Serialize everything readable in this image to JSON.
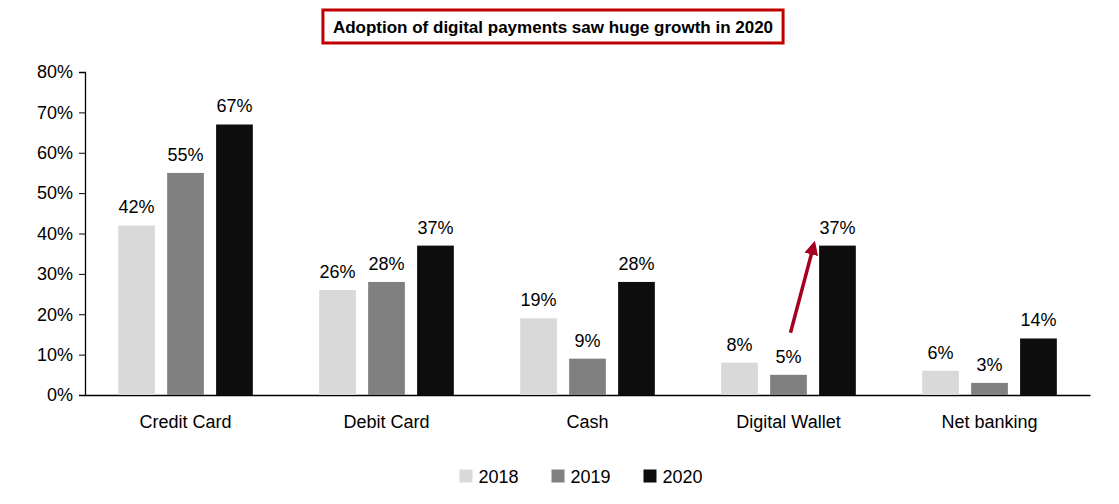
{
  "chart_data": {
    "type": "bar",
    "title": "Adoption of digital payments saw huge growth in 2020",
    "categories": [
      "Credit Card",
      "Debit Card",
      "Cash",
      "Digital Wallet",
      "Net banking"
    ],
    "series": [
      {
        "name": "2018",
        "color": "#d9d9d9",
        "values": [
          42,
          26,
          19,
          8,
          6
        ],
        "value_labels": [
          "42%",
          "26%",
          "19%",
          "8%",
          "6%"
        ]
      },
      {
        "name": "2019",
        "color": "#808080",
        "values": [
          55,
          28,
          9,
          5,
          3
        ],
        "value_labels": [
          "55%",
          "28%",
          "9%",
          "5%",
          "3%"
        ]
      },
      {
        "name": "2020",
        "color": "#0d0d0d",
        "values": [
          67,
          37,
          28,
          37,
          14
        ],
        "value_labels": [
          "67%",
          "37%",
          "28%",
          "37%",
          "14%"
        ]
      }
    ],
    "ylim": [
      0,
      80
    ],
    "yticks": [
      {
        "value": 0,
        "label": "0%"
      },
      {
        "value": 10,
        "label": "10%"
      },
      {
        "value": 20,
        "label": "20%"
      },
      {
        "value": 30,
        "label": "30%"
      },
      {
        "value": 40,
        "label": "40%"
      },
      {
        "value": 50,
        "label": "50%"
      },
      {
        "value": 60,
        "label": "60%"
      },
      {
        "value": 70,
        "label": "70%"
      },
      {
        "value": 80,
        "label": "80%"
      }
    ],
    "grid": false,
    "data_labels": true,
    "legend": "bottom"
  }
}
